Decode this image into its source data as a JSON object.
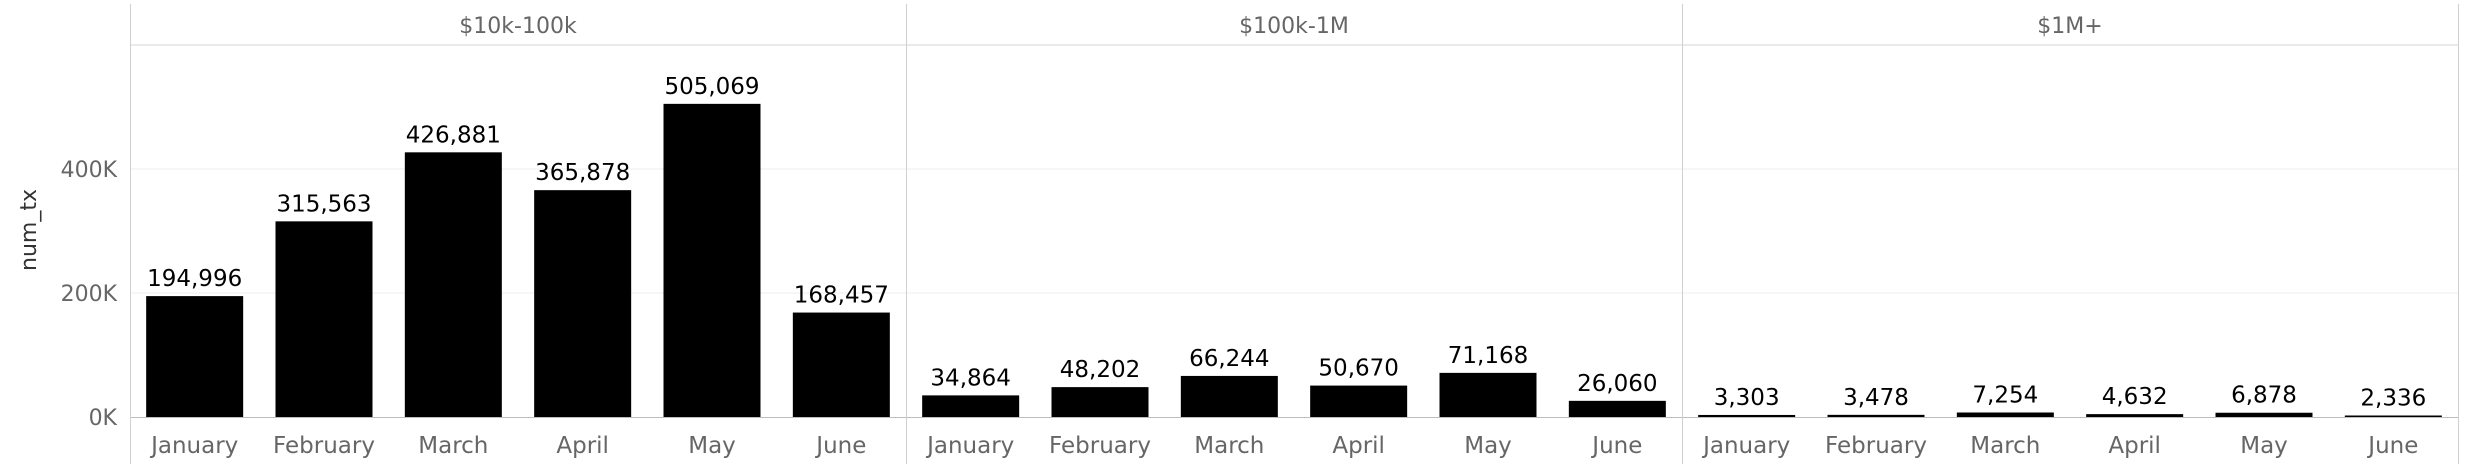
{
  "chart_data": {
    "type": "bar",
    "ylabel": "num_tx",
    "ylim": [
      0,
      600000
    ],
    "yticks": [
      {
        "value": 0,
        "label": "0K"
      },
      {
        "value": 200000,
        "label": "200K"
      },
      {
        "value": 400000,
        "label": "400K"
      }
    ],
    "grid": true,
    "bar_color": "#000000",
    "panels": [
      {
        "name": "$10k-100k",
        "categories": [
          "January",
          "February",
          "March",
          "April",
          "May",
          "June"
        ],
        "values": [
          194996,
          315563,
          426881,
          365878,
          505069,
          168457
        ],
        "value_labels": [
          "194,996",
          "315,563",
          "426,881",
          "365,878",
          "505,069",
          "168,457"
        ]
      },
      {
        "name": "$100k-1M",
        "categories": [
          "January",
          "February",
          "March",
          "April",
          "May",
          "June"
        ],
        "values": [
          34864,
          48202,
          66244,
          50670,
          71168,
          26060
        ],
        "value_labels": [
          "34,864",
          "48,202",
          "66,244",
          "50,670",
          "71,168",
          "26,060"
        ]
      },
      {
        "name": "$1M+",
        "categories": [
          "January",
          "February",
          "March",
          "April",
          "May",
          "June"
        ],
        "values": [
          3303,
          3478,
          7254,
          4632,
          6878,
          2336
        ],
        "value_labels": [
          "3,303",
          "3,478",
          "7,254",
          "4,632",
          "6,878",
          "2,336"
        ]
      }
    ]
  }
}
